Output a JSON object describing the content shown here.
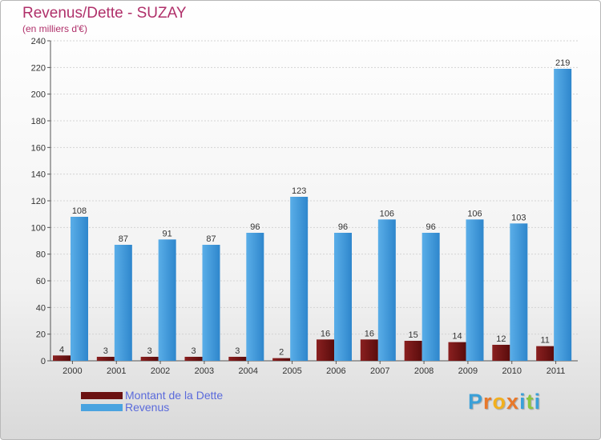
{
  "title": "Revenus/Dette - SUZAY",
  "subtitle": "(en milliers d'€)",
  "colors": {
    "debt_light": "#8a2020",
    "debt_dark": "#5a0c0c",
    "rev_light": "#5aaee8",
    "rev_dark": "#2e86cc",
    "title": "#b0306a",
    "legend_text": "#5a6adb"
  },
  "legend": [
    {
      "label": "Montant de la Dette",
      "color": "#6b1212"
    },
    {
      "label": "Revenus",
      "color": "#4aa3e0"
    }
  ],
  "logo": {
    "letters": [
      "P",
      "r",
      "o",
      "x",
      "i",
      "t",
      "i"
    ],
    "colors": [
      "#3aa0d8",
      "#e8782a",
      "#f2b01e",
      "#e8782a",
      "#3aa0d8",
      "#8cc63f",
      "#3aa0d8"
    ]
  },
  "chart_data": {
    "type": "bar",
    "title": "Revenus/Dette - SUZAY",
    "ylabel": "(en milliers d'€)",
    "xlabel": "",
    "ylim": [
      0,
      240
    ],
    "yticks": [
      0,
      20,
      40,
      60,
      80,
      100,
      120,
      140,
      160,
      180,
      200,
      220,
      240
    ],
    "grid": true,
    "categories": [
      "2000",
      "2001",
      "2002",
      "2003",
      "2004",
      "2005",
      "2006",
      "2007",
      "2008",
      "2009",
      "2010",
      "2011"
    ],
    "series": [
      {
        "name": "Montant de la Dette",
        "values": [
          4,
          3,
          3,
          3,
          3,
          2,
          16,
          16,
          15,
          14,
          12,
          11
        ]
      },
      {
        "name": "Revenus",
        "values": [
          108,
          87,
          91,
          87,
          96,
          123,
          96,
          106,
          96,
          106,
          103,
          219
        ]
      }
    ]
  }
}
